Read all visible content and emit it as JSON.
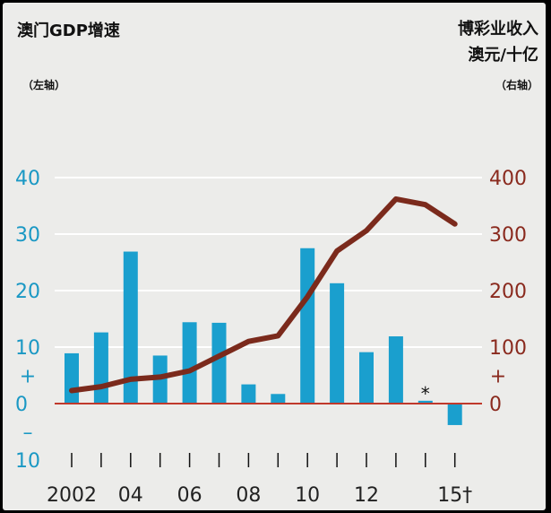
{
  "chart_data": {
    "type": "bar+line",
    "title_left": "澳门GDP增速",
    "title_right_line1": "博彩业收入",
    "title_right_line2": "澳元/十亿",
    "subtitle_left": "（左轴）",
    "subtitle_right": "（右轴）",
    "left_axis": {
      "ylim": [
        -10,
        40
      ],
      "ticks": [
        {
          "value": 40,
          "label": "40"
        },
        {
          "value": 30,
          "label": "30"
        },
        {
          "value": 20,
          "label": "20"
        },
        {
          "value": 10,
          "label": "10"
        },
        {
          "value": 0,
          "label": "0"
        },
        {
          "value": -10,
          "label": "10"
        }
      ],
      "plus_sign": "+",
      "minus_sign": "–"
    },
    "right_axis": {
      "ylim": [
        -100,
        400
      ],
      "ticks": [
        {
          "value": 400,
          "label": "400"
        },
        {
          "value": 300,
          "label": "300"
        },
        {
          "value": 200,
          "label": "200"
        },
        {
          "value": 100,
          "label": "100"
        },
        {
          "value": 0,
          "label": "0"
        }
      ],
      "plus_sign": "+"
    },
    "x_years": [
      2002,
      2003,
      2004,
      2005,
      2006,
      2007,
      2008,
      2009,
      2010,
      2011,
      2012,
      2013,
      2014,
      2015
    ],
    "x_tick_labels": [
      {
        "year": 2002,
        "label": "2002"
      },
      {
        "year": 2004,
        "label": "04"
      },
      {
        "year": 2006,
        "label": "06"
      },
      {
        "year": 2008,
        "label": "08"
      },
      {
        "year": 2010,
        "label": "10"
      },
      {
        "year": 2012,
        "label": "12"
      },
      {
        "year": 2015,
        "label": "15†"
      }
    ],
    "gdp_growth": [
      8.9,
      12.6,
      26.9,
      8.5,
      14.4,
      14.3,
      3.4,
      1.7,
      27.5,
      21.3,
      9.1,
      11.9,
      0.5,
      -3.8
    ],
    "gdp_annotation": {
      "year": 2014,
      "label": "*"
    },
    "gaming_revenue": [
      {
        "year": 2002,
        "value": 23
      },
      {
        "year": 2003,
        "value": 30
      },
      {
        "year": 2004,
        "value": 43
      },
      {
        "year": 2005,
        "value": 47
      },
      {
        "year": 2006,
        "value": 58
      },
      {
        "year": 2007,
        "value": 84
      },
      {
        "year": 2008,
        "value": 110
      },
      {
        "year": 2009,
        "value": 120
      },
      {
        "year": 2010,
        "value": 189
      },
      {
        "year": 2011,
        "value": 270
      },
      {
        "year": 2012,
        "value": 306
      },
      {
        "year": 2013,
        "value": 362
      },
      {
        "year": 2014,
        "value": 352
      },
      {
        "year": 2015,
        "value": 318
      }
    ],
    "colors": {
      "bars": "#1a9fce",
      "line": "#7b2a1c",
      "zero_line": "#c0392b",
      "grid": "#ffffff",
      "left_axis": "#1a98c4",
      "right_axis": "#8a2a1e",
      "background": "#ececea"
    },
    "grid": true
  }
}
